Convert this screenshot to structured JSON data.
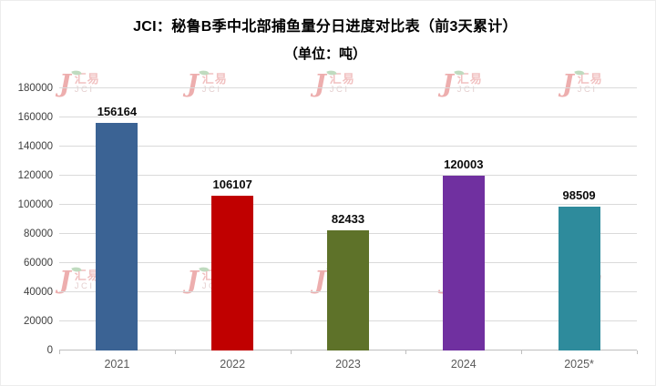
{
  "watermark": {
    "brand": "汇易",
    "abbr": "JCI"
  },
  "chart_data": {
    "type": "bar",
    "title": "JCI：秘鲁B季中北部捕鱼量分日进度对比表（前3天累计）",
    "subtitle": "（单位：吨）",
    "categories": [
      "2021",
      "2022",
      "2023",
      "2024",
      "2025*"
    ],
    "values": [
      156164,
      106107,
      82433,
      120003,
      98509
    ],
    "value_labels": [
      "156164",
      "106107",
      "82433",
      "120003",
      "98509"
    ],
    "bar_colors": [
      "#3b6394",
      "#c00000",
      "#5e7229",
      "#7030a0",
      "#2e8b9c"
    ],
    "xlabel": "",
    "ylabel": "",
    "ylim": [
      0,
      180000
    ],
    "y_ticks": [
      0,
      20000,
      40000,
      60000,
      80000,
      100000,
      120000,
      140000,
      160000,
      180000
    ],
    "grid": true,
    "legend": false
  }
}
